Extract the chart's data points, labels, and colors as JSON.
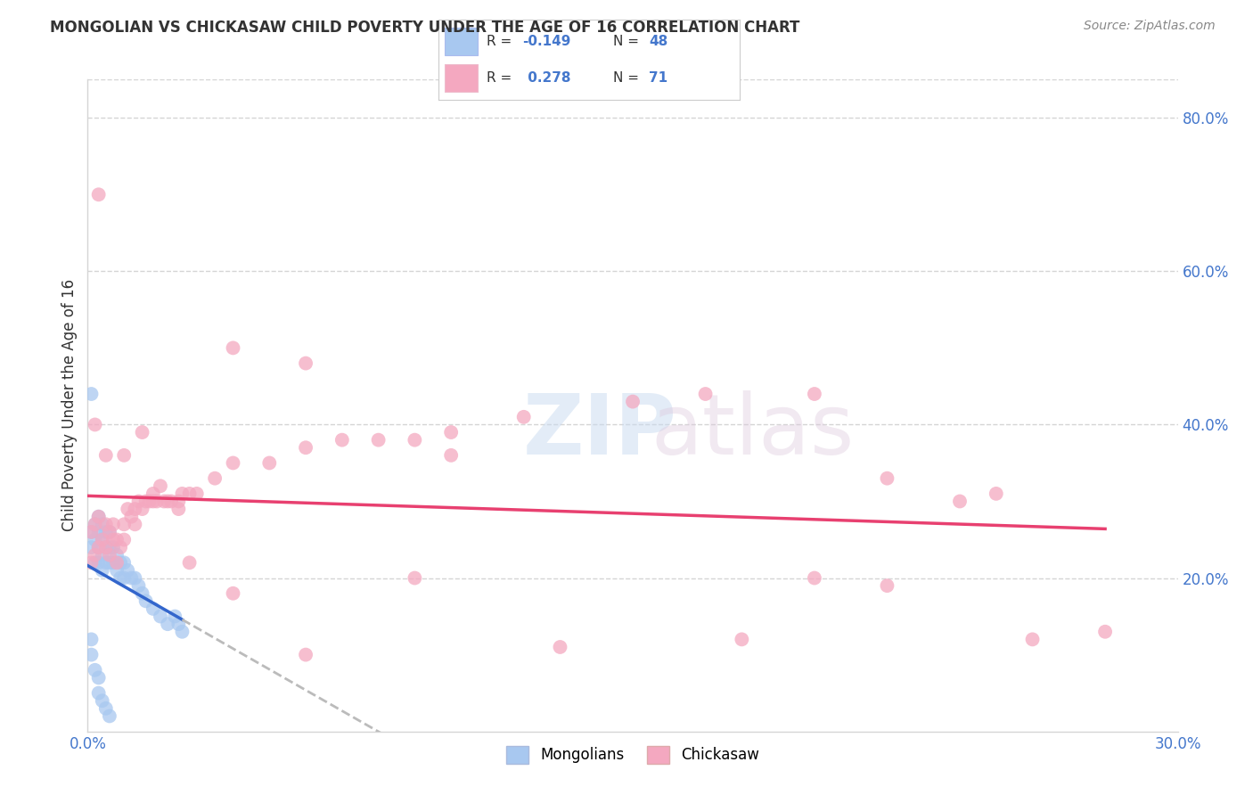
{
  "title": "MONGOLIAN VS CHICKASAW CHILD POVERTY UNDER THE AGE OF 16 CORRELATION CHART",
  "source": "Source: ZipAtlas.com",
  "ylabel": "Child Poverty Under the Age of 16",
  "xlim": [
    0.0,
    0.3
  ],
  "ylim": [
    0.0,
    0.85
  ],
  "mongolian_color": "#a8c8f0",
  "chickasaw_color": "#f4a8c0",
  "mongolian_line_color": "#3366cc",
  "chickasaw_line_color": "#e84070",
  "label_color": "#4477cc",
  "grid_color": "#d5d5d5",
  "mongolian_R": -0.149,
  "mongolian_N": 48,
  "chickasaw_R": 0.278,
  "chickasaw_N": 71,
  "mongolian_x": [
    0.001,
    0.001,
    0.001,
    0.002,
    0.002,
    0.002,
    0.003,
    0.003,
    0.003,
    0.003,
    0.004,
    0.004,
    0.004,
    0.004,
    0.005,
    0.005,
    0.005,
    0.006,
    0.006,
    0.006,
    0.007,
    0.007,
    0.008,
    0.008,
    0.009,
    0.009,
    0.01,
    0.01,
    0.011,
    0.012,
    0.013,
    0.014,
    0.015,
    0.016,
    0.018,
    0.02,
    0.022,
    0.024,
    0.025,
    0.026,
    0.001,
    0.001,
    0.002,
    0.003,
    0.003,
    0.004,
    0.005,
    0.006
  ],
  "mongolian_y": [
    0.44,
    0.26,
    0.24,
    0.27,
    0.25,
    0.22,
    0.28,
    0.26,
    0.24,
    0.22,
    0.27,
    0.25,
    0.23,
    0.21,
    0.26,
    0.24,
    0.22,
    0.26,
    0.24,
    0.22,
    0.24,
    0.22,
    0.23,
    0.21,
    0.22,
    0.2,
    0.22,
    0.2,
    0.21,
    0.2,
    0.2,
    0.19,
    0.18,
    0.17,
    0.16,
    0.15,
    0.14,
    0.15,
    0.14,
    0.13,
    0.12,
    0.1,
    0.08,
    0.07,
    0.05,
    0.04,
    0.03,
    0.02
  ],
  "chickasaw_x": [
    0.001,
    0.001,
    0.002,
    0.002,
    0.003,
    0.003,
    0.004,
    0.005,
    0.005,
    0.006,
    0.006,
    0.007,
    0.007,
    0.008,
    0.008,
    0.009,
    0.01,
    0.01,
    0.011,
    0.012,
    0.013,
    0.013,
    0.014,
    0.015,
    0.016,
    0.017,
    0.018,
    0.019,
    0.02,
    0.021,
    0.022,
    0.023,
    0.025,
    0.026,
    0.028,
    0.03,
    0.035,
    0.04,
    0.05,
    0.06,
    0.07,
    0.08,
    0.09,
    0.1,
    0.12,
    0.15,
    0.17,
    0.2,
    0.22,
    0.25,
    0.003,
    0.015,
    0.025,
    0.04,
    0.06,
    0.1,
    0.2,
    0.22,
    0.002,
    0.005,
    0.01,
    0.018,
    0.028,
    0.04,
    0.06,
    0.09,
    0.13,
    0.18,
    0.24,
    0.26,
    0.28
  ],
  "chickasaw_y": [
    0.26,
    0.22,
    0.27,
    0.23,
    0.28,
    0.24,
    0.25,
    0.27,
    0.24,
    0.26,
    0.23,
    0.27,
    0.25,
    0.25,
    0.22,
    0.24,
    0.27,
    0.25,
    0.29,
    0.28,
    0.29,
    0.27,
    0.3,
    0.29,
    0.3,
    0.3,
    0.31,
    0.3,
    0.32,
    0.3,
    0.3,
    0.3,
    0.3,
    0.31,
    0.31,
    0.31,
    0.33,
    0.35,
    0.35,
    0.37,
    0.38,
    0.38,
    0.38,
    0.39,
    0.41,
    0.43,
    0.44,
    0.44,
    0.33,
    0.31,
    0.7,
    0.39,
    0.29,
    0.5,
    0.48,
    0.36,
    0.2,
    0.19,
    0.4,
    0.36,
    0.36,
    0.3,
    0.22,
    0.18,
    0.1,
    0.2,
    0.11,
    0.12,
    0.3,
    0.12,
    0.13
  ]
}
